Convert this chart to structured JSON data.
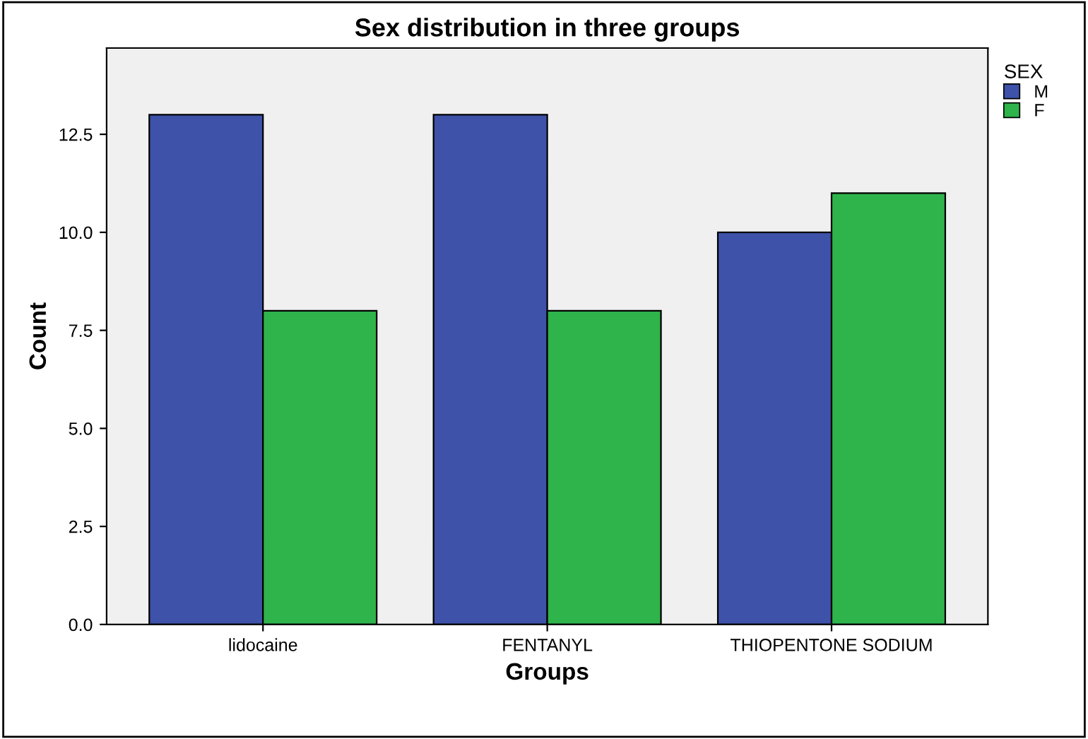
{
  "chart_data": {
    "type": "bar",
    "title": "Sex distribution in three groups",
    "xlabel": "Groups",
    "ylabel": "Count",
    "legend_title": "SEX",
    "categories": [
      "lidocaine",
      "FENTANYL",
      "THIOPENTONE SODIUM"
    ],
    "series": [
      {
        "name": "M",
        "color": "#3d52a8",
        "values": [
          13,
          13,
          10
        ]
      },
      {
        "name": "F",
        "color": "#2fb34b",
        "values": [
          8,
          8,
          11
        ]
      }
    ],
    "ylim": [
      0,
      14.7
    ],
    "yticks": [
      {
        "value": 0,
        "label": "0.0"
      },
      {
        "value": 2.5,
        "label": "2.5"
      },
      {
        "value": 5,
        "label": "5.0"
      },
      {
        "value": 7.5,
        "label": "7.5"
      },
      {
        "value": 10,
        "label": "10.0"
      },
      {
        "value": 12.5,
        "label": "12.5"
      }
    ],
    "grid": false,
    "legend": "top right"
  }
}
